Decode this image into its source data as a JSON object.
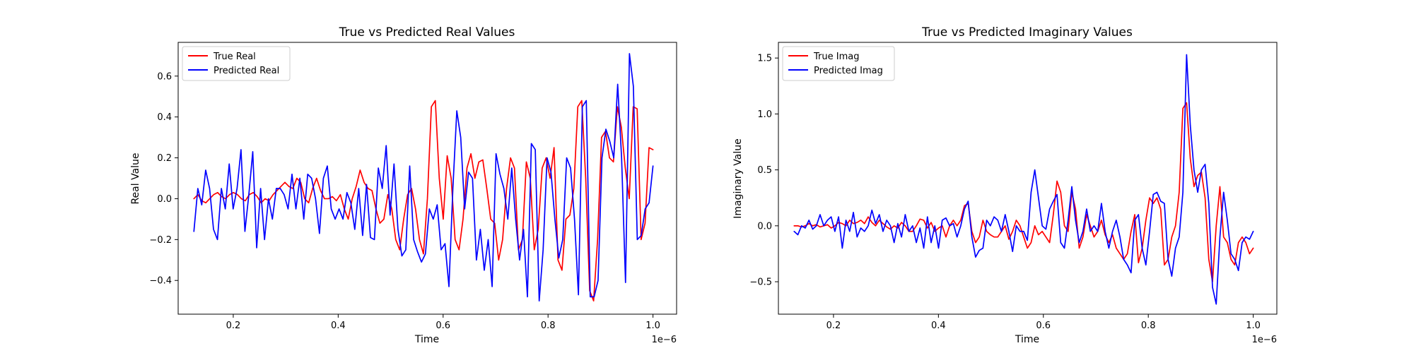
{
  "chart_data": [
    {
      "type": "line",
      "title": "True vs Predicted Real Values",
      "xlabel": "Time",
      "ylabel": "Real Value",
      "x_offset_label": "1e−6",
      "xlim": [
        0.095,
        1.045
      ],
      "ylim": [
        -0.565,
        0.765
      ],
      "xticks": [
        0.2,
        0.4,
        0.6,
        0.8,
        1.0
      ],
      "xtick_labels": [
        "0.2",
        "0.4",
        "0.6",
        "0.8",
        "1.0"
      ],
      "yticks": [
        -0.4,
        -0.2,
        0.0,
        0.2,
        0.4,
        0.6
      ],
      "ytick_labels": [
        "−0.4",
        "−0.2",
        "0.0",
        "0.2",
        "0.4",
        "0.6"
      ],
      "legend_position": "upper-left",
      "x_start": 0.125,
      "x_end": 1.0,
      "series": [
        {
          "name": "True Real",
          "color": "#ff0000",
          "values": [
            0.0,
            0.02,
            -0.01,
            -0.02,
            0.0,
            0.02,
            0.03,
            0.01,
            0.0,
            0.02,
            0.03,
            0.02,
            0.0,
            -0.01,
            0.02,
            0.03,
            0.01,
            -0.02,
            0.0,
            -0.01,
            0.02,
            0.04,
            0.06,
            0.08,
            0.06,
            0.05,
            0.1,
            0.08,
            0.0,
            -0.02,
            0.05,
            0.1,
            0.04,
            0.0,
            0.0,
            0.01,
            -0.01,
            0.02,
            -0.05,
            -0.1,
            0.0,
            0.06,
            0.14,
            0.08,
            0.05,
            0.04,
            -0.05,
            -0.12,
            -0.1,
            0.02,
            -0.05,
            -0.2,
            -0.25,
            -0.1,
            0.02,
            0.05,
            -0.05,
            -0.2,
            -0.27,
            0.0,
            0.45,
            0.48,
            0.1,
            -0.1,
            0.21,
            0.1,
            -0.2,
            -0.25,
            -0.1,
            0.15,
            0.22,
            0.1,
            0.18,
            0.19,
            0.05,
            -0.1,
            -0.12,
            -0.3,
            -0.2,
            0.05,
            0.2,
            0.15,
            -0.25,
            -0.2,
            0.18,
            0.1,
            -0.25,
            -0.15,
            0.15,
            0.2,
            0.1,
            0.25,
            -0.3,
            -0.35,
            -0.1,
            -0.08,
            0.05,
            0.45,
            0.48,
            0.1,
            -0.45,
            -0.5,
            -0.2,
            0.3,
            0.33,
            0.2,
            0.18,
            0.45,
            0.35,
            0.15,
            0.0,
            0.45,
            0.44,
            -0.2,
            -0.12,
            0.25,
            0.24
          ]
        },
        {
          "name": "Predicted Real",
          "color": "#0000ff",
          "values": [
            -0.16,
            0.05,
            -0.03,
            0.14,
            0.05,
            -0.15,
            -0.2,
            0.05,
            -0.05,
            0.17,
            -0.05,
            0.05,
            0.24,
            -0.16,
            0.02,
            0.23,
            -0.24,
            0.05,
            -0.2,
            0.0,
            -0.1,
            0.05,
            0.05,
            0.02,
            -0.05,
            0.12,
            -0.05,
            0.1,
            -0.1,
            0.12,
            0.1,
            0.0,
            -0.17,
            0.1,
            0.16,
            -0.05,
            -0.1,
            -0.05,
            -0.1,
            0.03,
            -0.02,
            -0.15,
            0.05,
            -0.18,
            0.07,
            -0.19,
            -0.2,
            0.15,
            0.05,
            0.26,
            -0.08,
            0.17,
            -0.15,
            -0.28,
            -0.25,
            0.16,
            -0.2,
            -0.26,
            -0.31,
            -0.27,
            -0.05,
            -0.1,
            -0.03,
            -0.25,
            -0.22,
            -0.43,
            0.05,
            0.43,
            0.3,
            -0.05,
            0.13,
            0.1,
            -0.3,
            -0.15,
            -0.35,
            -0.2,
            -0.43,
            0.22,
            0.12,
            0.05,
            -0.1,
            0.15,
            -0.1,
            -0.3,
            -0.15,
            -0.48,
            0.27,
            0.24,
            -0.5,
            -0.25,
            0.2,
            0.13,
            -0.1,
            -0.29,
            -0.2,
            0.2,
            0.15,
            -0.1,
            -0.47,
            0.45,
            0.48,
            -0.48,
            -0.48,
            -0.4,
            0.2,
            0.34,
            0.28,
            0.2,
            0.56,
            0.2,
            -0.41,
            0.71,
            0.55,
            -0.2,
            -0.18,
            -0.05,
            -0.02,
            0.16
          ]
        }
      ]
    },
    {
      "type": "line",
      "title": "True vs Predicted Imaginary Values",
      "xlabel": "Time",
      "ylabel": "Imaginary Value",
      "x_offset_label": "1e−6",
      "xlim": [
        0.095,
        1.045
      ],
      "ylim": [
        -0.79,
        1.64
      ],
      "xticks": [
        0.2,
        0.4,
        0.6,
        0.8,
        1.0
      ],
      "xtick_labels": [
        "0.2",
        "0.4",
        "0.6",
        "0.8",
        "1.0"
      ],
      "yticks": [
        -0.5,
        0.0,
        0.5,
        1.0,
        1.5
      ],
      "ytick_labels": [
        "−0.5",
        "0.0",
        "0.5",
        "1.0",
        "1.5"
      ],
      "legend_position": "upper-left",
      "x_start": 0.125,
      "x_end": 1.0,
      "series": [
        {
          "name": "True Imag",
          "color": "#ff0000",
          "values": [
            0.0,
            0.0,
            -0.01,
            0.0,
            0.02,
            0.0,
            0.01,
            -0.01,
            0.0,
            0.01,
            -0.02,
            0.0,
            0.03,
            0.02,
            0.0,
            0.05,
            0.02,
            0.03,
            0.05,
            0.02,
            0.08,
            0.03,
            0.0,
            0.05,
            0.02,
            -0.01,
            -0.03,
            0.0,
            -0.02,
            0.03,
            0.0,
            -0.05,
            -0.05,
            0.0,
            0.06,
            0.05,
            -0.02,
            0.03,
            -0.05,
            -0.02,
            0.0,
            -0.1,
            0.0,
            0.05,
            0.0,
            0.05,
            0.18,
            0.2,
            -0.05,
            -0.15,
            -0.1,
            0.05,
            -0.05,
            -0.08,
            -0.1,
            -0.1,
            -0.05,
            0.0,
            -0.12,
            -0.05,
            0.05,
            0.0,
            -0.1,
            -0.2,
            -0.15,
            0.0,
            -0.08,
            -0.05,
            -0.1,
            -0.15,
            0.1,
            0.4,
            0.3,
            0.0,
            -0.05,
            0.3,
            0.15,
            -0.2,
            -0.1,
            0.1,
            0.0,
            -0.1,
            -0.05,
            0.05,
            -0.08,
            -0.15,
            -0.08,
            -0.2,
            -0.25,
            -0.3,
            -0.25,
            -0.05,
            0.1,
            -0.33,
            -0.2,
            0.05,
            0.25,
            0.2,
            0.25,
            0.15,
            -0.35,
            -0.3,
            -0.1,
            0.0,
            0.3,
            1.05,
            1.1,
            0.6,
            0.35,
            0.45,
            0.48,
            0.25,
            -0.3,
            -0.5,
            0.0,
            0.35,
            -0.1,
            -0.15,
            -0.3,
            -0.35,
            -0.15,
            -0.1,
            -0.15,
            -0.25,
            -0.2
          ]
        },
        {
          "name": "Predicted Imag",
          "color": "#0000ff",
          "values": [
            -0.05,
            -0.08,
            0.0,
            -0.02,
            0.05,
            -0.03,
            0.0,
            0.1,
            0.0,
            0.05,
            0.08,
            -0.05,
            0.08,
            -0.2,
            0.05,
            -0.05,
            0.12,
            -0.1,
            -0.02,
            -0.05,
            0.0,
            0.14,
            0.02,
            0.1,
            -0.05,
            0.05,
            0.0,
            -0.15,
            0.02,
            -0.1,
            0.1,
            -0.05,
            0.0,
            -0.15,
            -0.02,
            -0.2,
            0.08,
            -0.15,
            0.0,
            -0.2,
            0.05,
            0.07,
            0.0,
            0.02,
            -0.1,
            0.0,
            0.15,
            0.22,
            -0.1,
            -0.28,
            -0.22,
            -0.2,
            0.05,
            0.0,
            0.08,
            0.05,
            -0.05,
            0.1,
            -0.05,
            -0.23,
            0.0,
            -0.05,
            -0.05,
            -0.13,
            0.3,
            0.5,
            0.25,
            0.0,
            -0.03,
            0.15,
            0.22,
            0.28,
            -0.15,
            -0.2,
            0.05,
            0.35,
            0.05,
            -0.15,
            -0.05,
            0.15,
            -0.05,
            0.0,
            -0.05,
            0.2,
            -0.05,
            -0.2,
            -0.05,
            0.05,
            -0.1,
            -0.3,
            -0.35,
            -0.42,
            0.05,
            0.1,
            -0.2,
            -0.35,
            -0.05,
            0.28,
            0.3,
            0.22,
            0.2,
            -0.3,
            -0.45,
            -0.2,
            -0.1,
            0.3,
            1.53,
            0.9,
            0.5,
            0.3,
            0.5,
            0.55,
            0.2,
            -0.55,
            -0.7,
            -0.1,
            0.3,
            0.05,
            -0.25,
            -0.3,
            -0.4,
            -0.15,
            -0.1,
            -0.12,
            -0.05
          ]
        }
      ]
    }
  ]
}
